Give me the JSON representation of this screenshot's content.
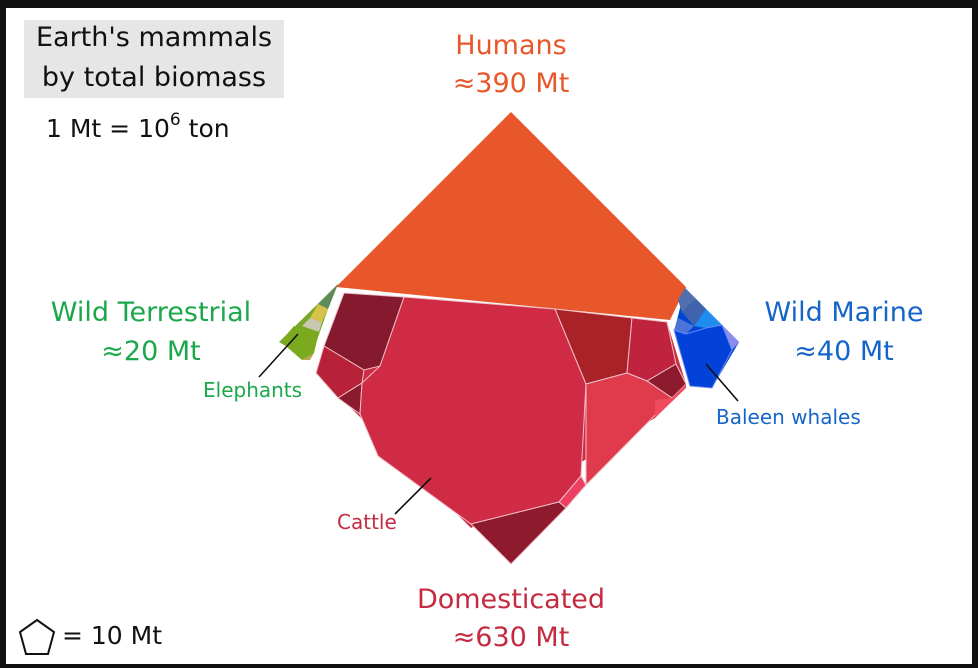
{
  "title": {
    "line1": "Earth's mammals",
    "line2": "by total biomass"
  },
  "unit_note": {
    "prefix": "1 Mt = 10",
    "exponent": "6",
    "suffix": " ton"
  },
  "groups": {
    "humans": {
      "name": "Humans",
      "value": "≈390 Mt",
      "color": "#e8572a"
    },
    "domesticated": {
      "name": "Domesticated",
      "value": "≈630 Mt",
      "color": "#c42a40"
    },
    "wild_terrestrial": {
      "name": "Wild Terrestrial",
      "value": "≈20 Mt",
      "color": "#1aa84a"
    },
    "wild_marine": {
      "name": "Wild Marine",
      "value": "≈40 Mt",
      "color": "#1565c8"
    }
  },
  "callouts": {
    "elephants": "Elephants",
    "baleen_whales": "Baleen whales",
    "cattle": "Cattle"
  },
  "legend": {
    "shape": "pentagon-icon",
    "text": "= 10 Mt"
  }
}
